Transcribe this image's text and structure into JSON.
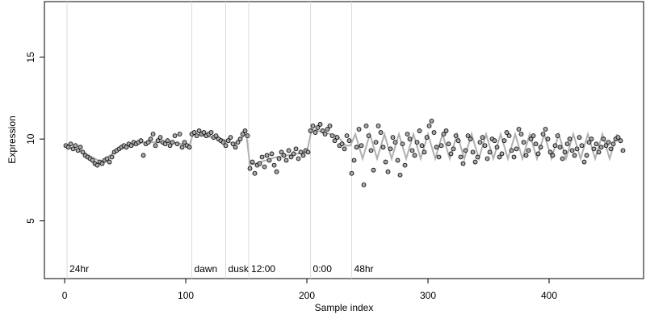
{
  "chart_data": {
    "type": "scatter",
    "xlabel": "Sample index",
    "ylabel": "Expression",
    "xlim": [
      -16.7,
      478
    ],
    "ylim": [
      1.47,
      18.4
    ],
    "xticks": [
      0,
      100,
      200,
      300,
      400
    ],
    "yticks": [
      5,
      10,
      15
    ],
    "phase_marks": [
      {
        "x": 2,
        "label": "24hr"
      },
      {
        "x": 105,
        "label": "dawn"
      },
      {
        "x": 133,
        "label": "dusk"
      },
      {
        "x": 152,
        "label": "12:00"
      },
      {
        "x": 203,
        "label": "0:00"
      },
      {
        "x": 237,
        "label": "48hr"
      }
    ],
    "fit": {
      "color": "#b0b0b0",
      "x": [
        0,
        15,
        30,
        45,
        65,
        90,
        103,
        106,
        130,
        140,
        150,
        153,
        175,
        200,
        204,
        225,
        232,
        236,
        240,
        246,
        252,
        258,
        264,
        270,
        276,
        282,
        288,
        294,
        300,
        306,
        312,
        318,
        324,
        330,
        336,
        342,
        348,
        354,
        360,
        366,
        372,
        378,
        384,
        390,
        396,
        402,
        408,
        414,
        420,
        426,
        432,
        438,
        444,
        450,
        456
      ],
      "values": [
        9.6,
        9.2,
        8.6,
        9.4,
        9.8,
        9.8,
        9.6,
        10.3,
        10.0,
        9.7,
        10.3,
        8.4,
        8.9,
        9.2,
        10.6,
        10.2,
        9.6,
        9.6,
        10.3,
        8.8,
        10.3,
        8.8,
        10.3,
        8.8,
        10.3,
        8.8,
        10.3,
        8.8,
        10.3,
        8.8,
        10.3,
        8.8,
        10.3,
        8.8,
        10.3,
        8.8,
        10.3,
        8.8,
        10.3,
        8.8,
        10.3,
        8.8,
        10.3,
        8.8,
        10.3,
        8.8,
        10.3,
        8.8,
        10.3,
        8.8,
        10.3,
        8.8,
        10.3,
        8.8,
        10.3
      ]
    },
    "points": {
      "color": "#a8a8a8",
      "x": [
        1,
        3,
        5,
        7,
        9,
        11,
        13,
        15,
        17,
        19,
        21,
        23,
        25,
        27,
        29,
        31,
        33,
        35,
        37,
        39,
        41,
        43,
        45,
        47,
        49,
        51,
        53,
        55,
        57,
        59,
        61,
        63,
        65,
        67,
        69,
        71,
        73,
        75,
        77,
        79,
        81,
        83,
        85,
        87,
        89,
        91,
        93,
        95,
        97,
        99,
        101,
        103,
        105,
        107,
        109,
        111,
        113,
        115,
        117,
        119,
        121,
        123,
        125,
        127,
        129,
        131,
        133,
        135,
        137,
        139,
        141,
        143,
        145,
        147,
        149,
        151,
        153,
        155,
        157,
        159,
        161,
        163,
        165,
        167,
        169,
        171,
        173,
        175,
        177,
        179,
        181,
        183,
        185,
        187,
        189,
        191,
        193,
        195,
        197,
        199,
        201,
        203,
        205,
        207,
        209,
        211,
        213,
        215,
        217,
        219,
        221,
        223,
        225,
        227,
        229,
        231,
        233,
        235,
        237,
        239,
        241,
        243,
        245,
        247,
        249,
        251,
        253,
        255,
        257,
        259,
        261,
        263,
        265,
        267,
        269,
        271,
        273,
        275,
        277,
        279,
        281,
        283,
        285,
        287,
        289,
        291,
        293,
        295,
        297,
        299,
        301,
        303,
        305,
        307,
        309,
        311,
        313,
        315,
        317,
        319,
        321,
        323,
        325,
        327,
        329,
        331,
        333,
        335,
        337,
        339,
        341,
        343,
        345,
        347,
        349,
        351,
        353,
        355,
        357,
        359,
        361,
        363,
        365,
        367,
        369,
        371,
        373,
        375,
        377,
        379,
        381,
        383,
        385,
        387,
        389,
        391,
        393,
        395,
        397,
        399,
        401,
        403,
        405,
        407,
        409,
        411,
        413,
        415,
        417,
        419,
        421,
        423,
        425,
        427,
        429,
        431,
        433,
        435,
        437,
        439,
        441,
        443,
        445,
        447,
        449,
        451,
        453,
        455,
        457,
        459,
        461
      ],
      "values": [
        9.6,
        9.5,
        9.7,
        9.4,
        9.6,
        9.3,
        9.5,
        9.2,
        9.0,
        8.9,
        8.8,
        8.7,
        8.5,
        8.4,
        8.6,
        8.5,
        8.7,
        8.8,
        8.6,
        8.9,
        9.2,
        9.3,
        9.4,
        9.5,
        9.6,
        9.5,
        9.7,
        9.6,
        9.8,
        9.7,
        9.8,
        9.9,
        9.0,
        9.7,
        9.8,
        10.0,
        10.3,
        9.6,
        9.9,
        10.1,
        9.8,
        9.7,
        9.9,
        9.6,
        9.8,
        10.2,
        9.7,
        10.3,
        9.5,
        9.8,
        9.6,
        9.5,
        10.3,
        10.4,
        10.2,
        10.5,
        10.3,
        10.4,
        10.2,
        10.3,
        10.4,
        10.1,
        10.2,
        10.0,
        9.9,
        9.8,
        9.6,
        9.9,
        10.1,
        9.7,
        9.5,
        9.8,
        10.0,
        10.3,
        10.5,
        10.2,
        8.2,
        8.6,
        7.9,
        8.4,
        8.5,
        8.9,
        8.3,
        9.0,
        8.7,
        9.1,
        8.4,
        8.0,
        8.8,
        9.2,
        9.0,
        8.7,
        9.3,
        8.9,
        9.1,
        9.4,
        8.8,
        9.2,
        9.0,
        9.3,
        9.2,
        10.5,
        10.8,
        10.4,
        10.7,
        10.9,
        10.5,
        10.3,
        10.6,
        10.8,
        10.2,
        9.9,
        10.1,
        9.6,
        9.7,
        9.4,
        10.2,
        9.9,
        7.9,
        8.7,
        9.5,
        10.6,
        9.6,
        7.2,
        10.8,
        10.2,
        9.3,
        8.1,
        9.8,
        10.8,
        10.4,
        9.5,
        8.6,
        8.0,
        9.4,
        10.1,
        9.8,
        8.7,
        7.8,
        9.7,
        8.4,
        10.3,
        10.0,
        9.3,
        9.0,
        9.8,
        10.5,
        9.6,
        9.2,
        10.1,
        10.8,
        11.1,
        10.4,
        9.5,
        8.9,
        9.6,
        10.3,
        10.5,
        9.7,
        9.1,
        9.4,
        10.2,
        9.9,
        8.9,
        8.5,
        9.3,
        10.2,
        10.0,
        9.2,
        8.6,
        8.9,
        9.8,
        10.1,
        9.6,
        8.8,
        9.2,
        10.0,
        9.9,
        9.5,
        8.9,
        9.1,
        9.9,
        10.4,
        10.2,
        9.3,
        8.9,
        9.4,
        10.6,
        10.3,
        9.8,
        9.0,
        9.3,
        10.0,
        10.2,
        9.7,
        9.1,
        9.5,
        10.3,
        10.6,
        10.0,
        9.2,
        9.0,
        9.6,
        10.2,
        9.5,
        8.8,
        9.2,
        9.7,
        10.0,
        9.3,
        9.0,
        9.4,
        10.1,
        9.6,
        8.6,
        9.0,
        9.8,
        10.0,
        9.4,
        9.7,
        9.2,
        9.5,
        10.0,
        9.6,
        9.8,
        9.4,
        9.7,
        10.0,
        10.1,
        9.9,
        9.3
      ]
    }
  }
}
